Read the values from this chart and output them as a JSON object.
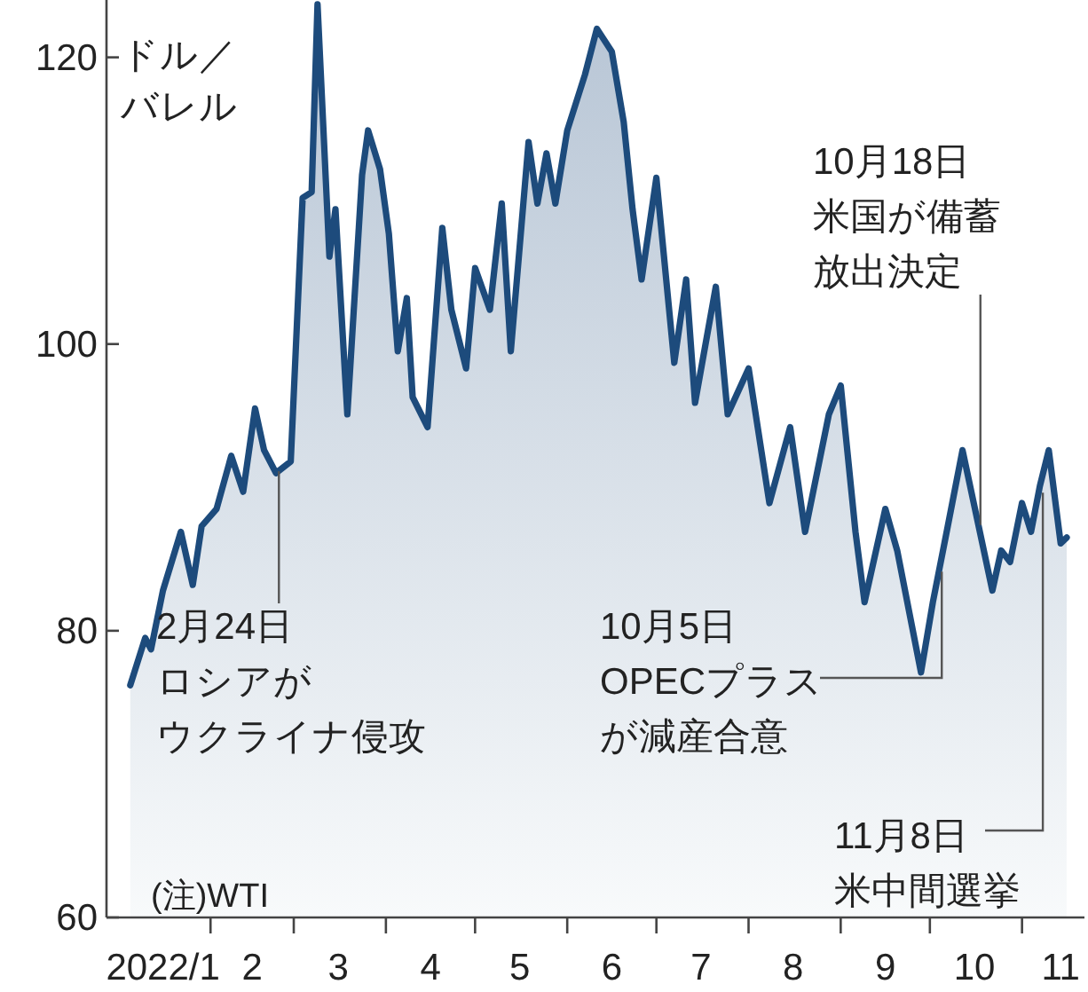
{
  "chart_data": {
    "type": "area",
    "ylabel": "ドル／バレル",
    "x": [
      "2022-01-05",
      "2022-01-10",
      "2022-01-12",
      "2022-01-16",
      "2022-01-22",
      "2022-01-26",
      "2022-01-29",
      "2022-02-03",
      "2022-02-08",
      "2022-02-12",
      "2022-02-16",
      "2022-02-19",
      "2022-02-23",
      "2022-02-28",
      "2022-03-04",
      "2022-03-07",
      "2022-03-09",
      "2022-03-13",
      "2022-03-15",
      "2022-03-19",
      "2022-03-24",
      "2022-03-26",
      "2022-03-30",
      "2022-04-02",
      "2022-04-05",
      "2022-04-08",
      "2022-04-10",
      "2022-04-15",
      "2022-04-20",
      "2022-04-23",
      "2022-04-28",
      "2022-05-01",
      "2022-05-06",
      "2022-05-10",
      "2022-05-13",
      "2022-05-19",
      "2022-05-22",
      "2022-05-25",
      "2022-05-28",
      "2022-06-01",
      "2022-06-07",
      "2022-06-11",
      "2022-06-16",
      "2022-06-20",
      "2022-06-23",
      "2022-06-26",
      "2022-07-01",
      "2022-07-07",
      "2022-07-11",
      "2022-07-14",
      "2022-07-21",
      "2022-07-25",
      "2022-08-01",
      "2022-08-08",
      "2022-08-15",
      "2022-08-20",
      "2022-08-28",
      "2022-09-01",
      "2022-09-06",
      "2022-09-09",
      "2022-09-16",
      "2022-09-20",
      "2022-09-28",
      "2022-10-02",
      "2022-10-07",
      "2022-10-12",
      "2022-10-17",
      "2022-10-22",
      "2022-10-25",
      "2022-10-28",
      "2022-11-01",
      "2022-11-04",
      "2022-11-07",
      "2022-11-10",
      "2022-11-14",
      "2022-11-16"
    ],
    "series": [
      {
        "color": "#1d4b7c",
        "values": [
          76.2,
          79.5,
          78.7,
          82.8,
          86.9,
          83.2,
          87.3,
          88.5,
          92.2,
          89.7,
          95.5,
          92.6,
          91.0,
          91.8,
          110.2,
          110.6,
          123.7,
          106.1,
          109.4,
          95.1,
          111.8,
          114.9,
          112.2,
          107.7,
          99.5,
          103.2,
          96.3,
          94.2,
          108.1,
          102.4,
          98.3,
          105.3,
          102.4,
          109.8,
          99.5,
          114.1,
          109.8,
          113.3,
          109.8,
          114.9,
          118.8,
          122.0,
          120.4,
          115.5,
          109.4,
          104.5,
          111.6,
          98.7,
          104.5,
          95.9,
          104.0,
          95.1,
          98.3,
          88.9,
          94.2,
          86.9,
          95.1,
          97.1,
          86.9,
          82.0,
          88.5,
          85.6,
          77.1,
          82.0,
          87.3,
          92.6,
          87.7,
          82.8,
          85.6,
          84.8,
          88.9,
          86.9,
          90.1,
          92.6,
          86.1,
          86.5
        ]
      }
    ],
    "xlim": [
      "2021-12-28",
      "2022-11-22"
    ],
    "xticks": [
      {
        "value": "2022-01-16",
        "label": "2022/1"
      },
      {
        "value": "2022-02-01",
        "label": null
      },
      {
        "value": "2022-02-15",
        "label": "2"
      },
      {
        "value": "2022-03-01",
        "label": null
      },
      {
        "value": "2022-03-16",
        "label": "3"
      },
      {
        "value": "2022-04-01",
        "label": null
      },
      {
        "value": "2022-04-16",
        "label": "4"
      },
      {
        "value": "2022-05-01",
        "label": null
      },
      {
        "value": "2022-05-16",
        "label": "5"
      },
      {
        "value": "2022-06-01",
        "label": null
      },
      {
        "value": "2022-06-16",
        "label": "6"
      },
      {
        "value": "2022-07-01",
        "label": null
      },
      {
        "value": "2022-07-16",
        "label": "7"
      },
      {
        "value": "2022-08-01",
        "label": null
      },
      {
        "value": "2022-08-16",
        "label": "8"
      },
      {
        "value": "2022-09-01",
        "label": null
      },
      {
        "value": "2022-09-16",
        "label": "9"
      },
      {
        "value": "2022-10-01",
        "label": null
      },
      {
        "value": "2022-10-16",
        "label": "10"
      },
      {
        "value": "2022-11-01",
        "label": null
      },
      {
        "value": "2022-11-14",
        "label": "11"
      }
    ],
    "ylim": [
      60,
      124
    ],
    "yticks": [
      60,
      80,
      100,
      120
    ],
    "grid": false,
    "annotations": [
      {
        "text": "2月24日ロシアがウクライナ侵攻",
        "x": "2022-02-24",
        "y": 91.5
      },
      {
        "text": "10月5日OPECプラスが減産合意",
        "x": "2022-10-05",
        "y": 84.5
      },
      {
        "text": "10月18日米国が備蓄放出決定",
        "x": "2022-10-18",
        "y": 87
      },
      {
        "text": "11月8日米中間選挙",
        "x": "2022-11-08",
        "y": 90
      },
      "(注)WTI"
    ]
  }
}
